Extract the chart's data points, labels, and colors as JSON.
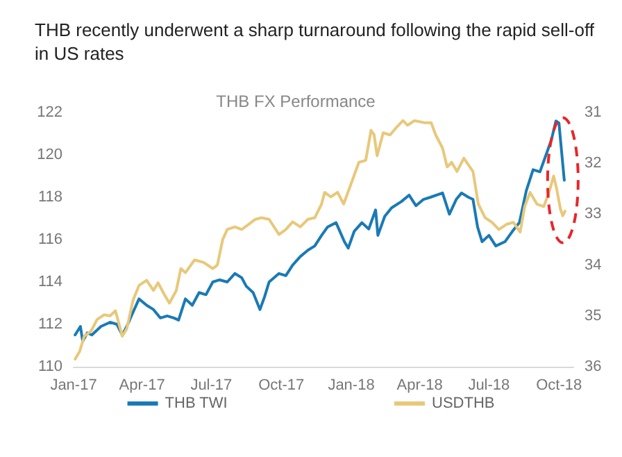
{
  "chart_data": {
    "type": "line",
    "title": "THB recently underwent a sharp turnaround following the rapid sell-off in US rates",
    "subtitle": "THB FX Performance",
    "xlim": [
      "2017-01-01",
      "2018-10-20"
    ],
    "xticks": [
      {
        "value": "2017-01-01",
        "label": "Jan-17"
      },
      {
        "value": "2017-04-01",
        "label": "Apr-17"
      },
      {
        "value": "2017-07-01",
        "label": "Jul-17"
      },
      {
        "value": "2017-10-01",
        "label": "Oct-17"
      },
      {
        "value": "2018-01-01",
        "label": "Jan-18"
      },
      {
        "value": "2018-04-01",
        "label": "Apr-18"
      },
      {
        "value": "2018-07-01",
        "label": "Jul-18"
      },
      {
        "value": "2018-10-01",
        "label": "Oct-18"
      }
    ],
    "ylim": [
      110,
      122
    ],
    "yticks": [
      110,
      112,
      114,
      116,
      118,
      120,
      122
    ],
    "y2lim": [
      36,
      31
    ],
    "y2ticks": [
      31,
      32,
      33,
      34,
      35,
      36
    ],
    "grid": false,
    "legend": "bottom",
    "marker": "none",
    "line_style": "solid",
    "series": [
      {
        "name": "THB TWI",
        "color": "#1a7ab5",
        "x": [
          "2017-01-03",
          "2017-01-10",
          "2017-01-13",
          "2017-01-19",
          "2017-01-25",
          "2017-02-06",
          "2017-02-18",
          "2017-02-27",
          "2017-03-06",
          "2017-03-12",
          "2017-03-18",
          "2017-03-28",
          "2017-04-07",
          "2017-04-16",
          "2017-04-25",
          "2017-05-04",
          "2017-05-13",
          "2017-05-19",
          "2017-05-28",
          "2017-06-06",
          "2017-06-15",
          "2017-06-24",
          "2017-07-03",
          "2017-07-12",
          "2017-07-22",
          "2017-08-01",
          "2017-08-10",
          "2017-08-16",
          "2017-08-25",
          "2017-09-03",
          "2017-09-09",
          "2017-09-15",
          "2017-09-28",
          "2017-10-07",
          "2017-10-16",
          "2017-10-26",
          "2017-11-05",
          "2017-11-14",
          "2017-11-23",
          "2017-12-01",
          "2017-12-12",
          "2017-12-23",
          "2017-12-28",
          "2018-01-05",
          "2018-01-15",
          "2018-01-24",
          "2018-02-02",
          "2018-02-05",
          "2018-02-14",
          "2018-02-23",
          "2018-03-08",
          "2018-03-18",
          "2018-03-27",
          "2018-04-06",
          "2018-04-15",
          "2018-05-01",
          "2018-05-10",
          "2018-05-19",
          "2018-05-26",
          "2018-06-04",
          "2018-06-10",
          "2018-06-16",
          "2018-06-22",
          "2018-07-01",
          "2018-07-10",
          "2018-07-22",
          "2018-08-01",
          "2018-08-10",
          "2018-08-19",
          "2018-08-28",
          "2018-09-06",
          "2018-09-15",
          "2018-09-21",
          "2018-09-27",
          "2018-10-01",
          "2018-10-08"
        ],
        "values": [
          111.5,
          111.9,
          111.2,
          111.6,
          111.5,
          111.9,
          112.1,
          112.0,
          111.5,
          111.9,
          112.4,
          113.2,
          112.9,
          112.7,
          112.3,
          112.4,
          112.3,
          112.2,
          113.2,
          112.9,
          113.5,
          113.4,
          114.0,
          114.1,
          114.0,
          114.4,
          114.2,
          113.8,
          113.5,
          112.7,
          113.3,
          114.0,
          114.4,
          114.3,
          114.8,
          115.2,
          115.5,
          115.7,
          116.2,
          116.6,
          116.8,
          115.9,
          115.6,
          116.4,
          116.8,
          116.5,
          117.4,
          116.2,
          117.1,
          117.5,
          117.8,
          118.1,
          117.6,
          117.9,
          118.0,
          118.2,
          117.2,
          117.9,
          118.2,
          118.0,
          117.9,
          116.6,
          115.9,
          116.2,
          115.7,
          115.9,
          116.4,
          116.8,
          118.3,
          119.3,
          119.2,
          120.1,
          120.7,
          121.6,
          121.5,
          118.8
        ]
      },
      {
        "name": "USDTHB",
        "color": "#e8c87a",
        "axis": "y2",
        "x": [
          "2017-01-03",
          "2017-01-09",
          "2017-01-15",
          "2017-01-24",
          "2017-02-01",
          "2017-02-10",
          "2017-02-18",
          "2017-02-25",
          "2017-03-06",
          "2017-03-12",
          "2017-03-20",
          "2017-03-28",
          "2017-04-07",
          "2017-04-16",
          "2017-04-22",
          "2017-05-01",
          "2017-05-07",
          "2017-05-16",
          "2017-05-22",
          "2017-05-28",
          "2017-06-09",
          "2017-06-21",
          "2017-07-03",
          "2017-07-09",
          "2017-07-16",
          "2017-07-22",
          "2017-08-01",
          "2017-08-10",
          "2017-08-19",
          "2017-08-28",
          "2017-09-05",
          "2017-09-15",
          "2017-09-28",
          "2017-10-07",
          "2017-10-16",
          "2017-10-26",
          "2017-11-05",
          "2017-11-14",
          "2017-11-23",
          "2017-11-27",
          "2017-12-05",
          "2017-12-14",
          "2017-12-22",
          "2018-01-02",
          "2018-01-11",
          "2018-01-20",
          "2018-01-27",
          "2018-01-31",
          "2018-02-04",
          "2018-02-12",
          "2018-02-21",
          "2018-03-01",
          "2018-03-10",
          "2018-03-16",
          "2018-03-25",
          "2018-04-07",
          "2018-04-16",
          "2018-04-22",
          "2018-05-01",
          "2018-05-07",
          "2018-05-13",
          "2018-05-20",
          "2018-05-29",
          "2018-06-04",
          "2018-06-10",
          "2018-06-17",
          "2018-06-26",
          "2018-07-05",
          "2018-07-14",
          "2018-07-24",
          "2018-08-02",
          "2018-08-11",
          "2018-08-17",
          "2018-08-24",
          "2018-09-02",
          "2018-09-11",
          "2018-09-18",
          "2018-09-24",
          "2018-09-28",
          "2018-10-03",
          "2018-10-06",
          "2018-10-09"
        ],
        "values": [
          35.85,
          35.7,
          35.4,
          35.3,
          35.07,
          34.98,
          35.0,
          34.9,
          35.4,
          35.25,
          34.7,
          34.4,
          34.3,
          34.5,
          34.35,
          34.6,
          34.75,
          34.5,
          34.07,
          34.15,
          33.9,
          33.95,
          34.07,
          34.0,
          33.5,
          33.3,
          33.25,
          33.3,
          33.2,
          33.1,
          33.07,
          33.1,
          33.4,
          33.3,
          33.15,
          33.25,
          33.1,
          33.07,
          32.8,
          32.57,
          32.66,
          32.57,
          32.8,
          32.35,
          31.98,
          31.94,
          31.35,
          31.44,
          31.85,
          31.4,
          31.44,
          31.3,
          31.16,
          31.25,
          31.16,
          31.2,
          31.2,
          31.44,
          31.7,
          32.07,
          31.98,
          32.16,
          31.9,
          32.03,
          32.16,
          32.8,
          33.07,
          33.16,
          33.3,
          33.2,
          33.16,
          33.35,
          32.85,
          32.57,
          32.8,
          32.85,
          32.57,
          32.25,
          32.5,
          32.9,
          33.03,
          32.94
        ]
      }
    ]
  }
}
